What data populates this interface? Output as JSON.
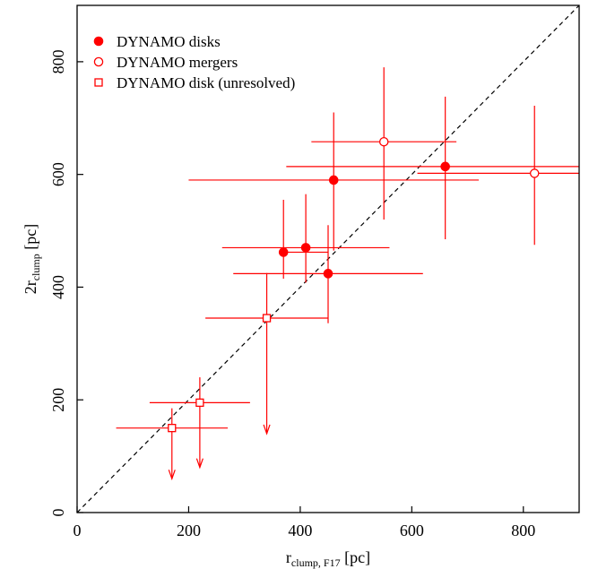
{
  "chart_data": {
    "type": "scatter",
    "xlabel_main": "r",
    "xlabel_sub": "clump, F17",
    "xlabel_unit": " [pc]",
    "ylabel_pre": "2r",
    "ylabel_sub": "clump",
    "ylabel_unit": " [pc]",
    "xlim": [
      0,
      900
    ],
    "ylim": [
      0,
      900
    ],
    "xticks": [
      0,
      200,
      400,
      600,
      800
    ],
    "yticks": [
      0,
      200,
      400,
      600,
      800
    ],
    "one_to_one_line": true,
    "grid": false,
    "legend_position": "top-left",
    "color": "#ff0000",
    "series": [
      {
        "name": "DYNAMO disks",
        "marker": "filled-circle",
        "points": [
          {
            "x": 370,
            "y": 462,
            "xerr": [
              370,
              450
            ],
            "yerr": [
              415,
              555
            ]
          },
          {
            "x": 410,
            "y": 470,
            "xerr": [
              260,
              560
            ],
            "yerr": [
              408,
              565
            ]
          },
          {
            "x": 450,
            "y": 424,
            "xerr": [
              280,
              620
            ],
            "yerr": [
              336,
              510
            ]
          },
          {
            "x": 460,
            "y": 590,
            "xerr": [
              200,
              720
            ],
            "yerr": [
              465,
              710
            ]
          },
          {
            "x": 660,
            "y": 614,
            "xerr": [
              375,
              900
            ],
            "yerr": [
              485,
              738
            ]
          }
        ]
      },
      {
        "name": "DYNAMO mergers",
        "marker": "open-circle",
        "points": [
          {
            "x": 550,
            "y": 658,
            "xerr": [
              420,
              680
            ],
            "yerr": [
              520,
              790
            ]
          },
          {
            "x": 820,
            "y": 602,
            "xerr": [
              610,
              900
            ],
            "yerr": [
              475,
              722
            ]
          }
        ]
      },
      {
        "name": "DYNAMO disk (unresolved)",
        "marker": "open-square",
        "points": [
          {
            "x": 170,
            "y": 150,
            "xerr": [
              70,
              270
            ],
            "yerr": [
              60,
              185
            ],
            "upper_limit": true
          },
          {
            "x": 220,
            "y": 195,
            "xerr": [
              130,
              310
            ],
            "yerr": [
              80,
              240
            ],
            "upper_limit": true
          },
          {
            "x": 340,
            "y": 345,
            "xerr": [
              230,
              450
            ],
            "yerr": [
              140,
              425
            ],
            "upper_limit": true
          }
        ]
      }
    ]
  }
}
